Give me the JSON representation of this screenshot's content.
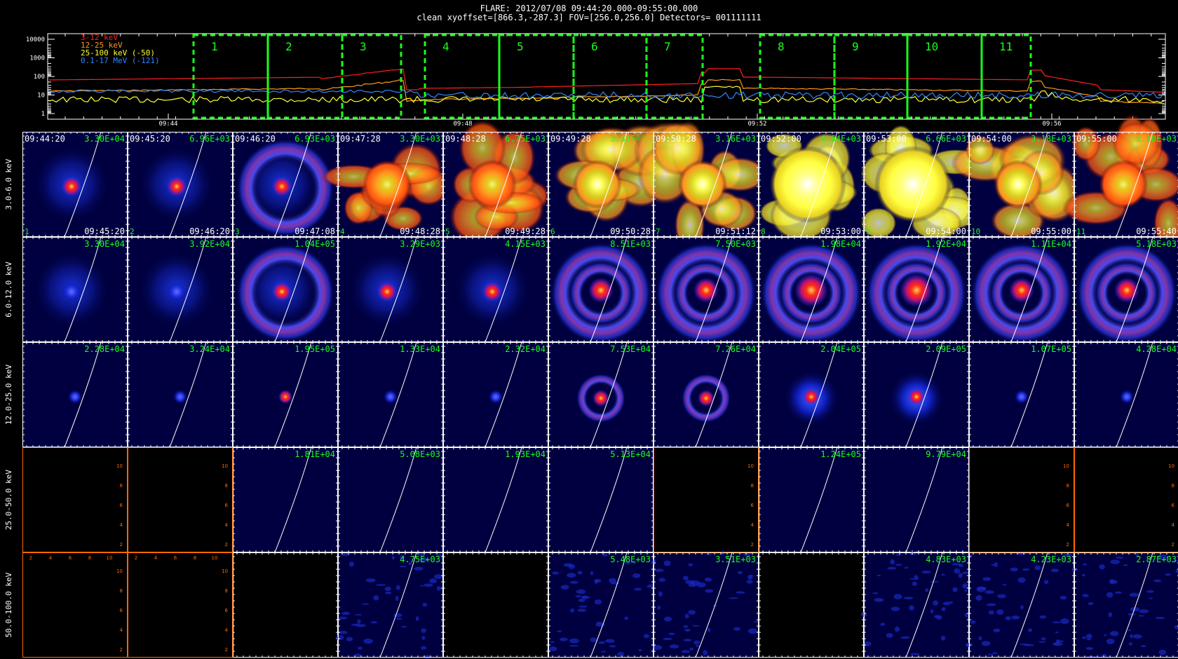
{
  "header": {
    "title_line1": "FLARE: 2012/07/08 09:44:20.000-09:55:00.000",
    "title_line2": "clean   xyoffset=[866.3,-287.3]   FOV=[256.0,256.0]   Detectors= 001111111"
  },
  "lightcurve": {
    "yticks": [
      "10000",
      "1000",
      "100",
      "10",
      "1"
    ],
    "xticks": [
      "09:44",
      "09:48",
      "09:52",
      "09:56"
    ],
    "legend": [
      {
        "label": "3-12 keV",
        "color": "#ff2020"
      },
      {
        "label": "12-25 keV",
        "color": "#ff9a1a"
      },
      {
        "label": "25-100 keV (-50)",
        "color": "#ffff30"
      },
      {
        "label": "0.1-17 MeV (-121)",
        "color": "#2f86ff"
      }
    ],
    "intervals": [
      "1",
      "2",
      "3",
      "4",
      "5",
      "6",
      "7",
      "8",
      "9",
      "10",
      "11"
    ],
    "interval_color": "#18ff18"
  },
  "energy_rows": [
    "3.0-6.0 keV",
    "6.0-12.0 keV",
    "12.0-25.0 keV",
    "25.0-50.0 keV",
    "50.0-100.0 keV"
  ],
  "time_start": [
    "09:44:20",
    "09:45:20",
    "09:46:20",
    "09:47:28",
    "09:48:28",
    "09:49:28",
    "09:50:28",
    "09:52:00",
    "09:53:00",
    "09:54:00",
    "09:55:00"
  ],
  "time_end": [
    "09:45:20",
    "09:46:20",
    "09:47:08",
    "09:48:28",
    "09:49:28",
    "09:50:28",
    "09:51:12",
    "09:53:00",
    "09:54:00",
    "09:55:00",
    "09:55:40"
  ],
  "panel_numbers": [
    "1",
    "2",
    "3",
    "4",
    "5",
    "6",
    "7",
    "8",
    "9",
    "10",
    "11"
  ],
  "peak_values": [
    [
      "3.30E+04",
      "6.96E+03",
      "6.93E+03",
      "3.30E+03",
      "6.75E+03",
      "3.33E+03",
      "3.16E+03",
      "4.64E+03",
      "6.66E+03",
      "3.18E+03",
      "3.10E+03"
    ],
    [
      "3.30E+04",
      "3.92E+04",
      "1.04E+05",
      "3.29E+03",
      "4.15E+03",
      "8.51E+03",
      "7.50E+03",
      "1.98E+04",
      "1.92E+04",
      "1.11E+04",
      "5.18E+03"
    ],
    [
      "2.28E+04",
      "3.24E+04",
      "1.95E+05",
      "1.33E+04",
      "2.32E+04",
      "7.53E+04",
      "7.26E+04",
      "2.04E+05",
      "2.09E+05",
      "1.07E+05",
      "4.28E+04"
    ],
    [
      "",
      "",
      "1.81E+04",
      "5.08E+03",
      "1.93E+04",
      "5.13E+04",
      "",
      "1.24E+05",
      "9.79E+04",
      "",
      ""
    ],
    [
      "",
      "",
      "",
      "4.75E+03",
      "",
      "5.48E+03",
      "3.51E+03",
      "",
      "4.83E+03",
      "4.23E+03",
      "2.87E+03"
    ]
  ],
  "panel_kinds": [
    [
      "blue",
      "blue",
      "blue-ring",
      "orange",
      "orange",
      "yellow",
      "yellow",
      "bright",
      "bright",
      "yellow",
      "orange"
    ],
    [
      "blue",
      "blue",
      "blue-ring",
      "blue",
      "blue",
      "ring",
      "ring",
      "ring-red",
      "ring-red",
      "ring",
      "ring"
    ],
    [
      "plain",
      "plain",
      "plain",
      "plain",
      "plain",
      "ring-small",
      "ring-small",
      "blob",
      "blob",
      "plain",
      "plain"
    ],
    [
      "empty",
      "empty",
      "plain",
      "plain",
      "plain",
      "plain",
      "empty",
      "plain",
      "plain",
      "empty",
      "empty"
    ],
    [
      "empty",
      "empty",
      "black",
      "noise",
      "black",
      "noise",
      "noise",
      "black",
      "noise",
      "noise",
      "noise"
    ]
  ],
  "empty_axis_ticks": [
    "2",
    "4",
    "6",
    "8",
    "10"
  ],
  "colors": {
    "image_bg": "#000040",
    "timestamp": "#ffffff",
    "peak_label": "#18ff18",
    "empty_axis": "#ff6a00",
    "limb": "#ffffff"
  }
}
